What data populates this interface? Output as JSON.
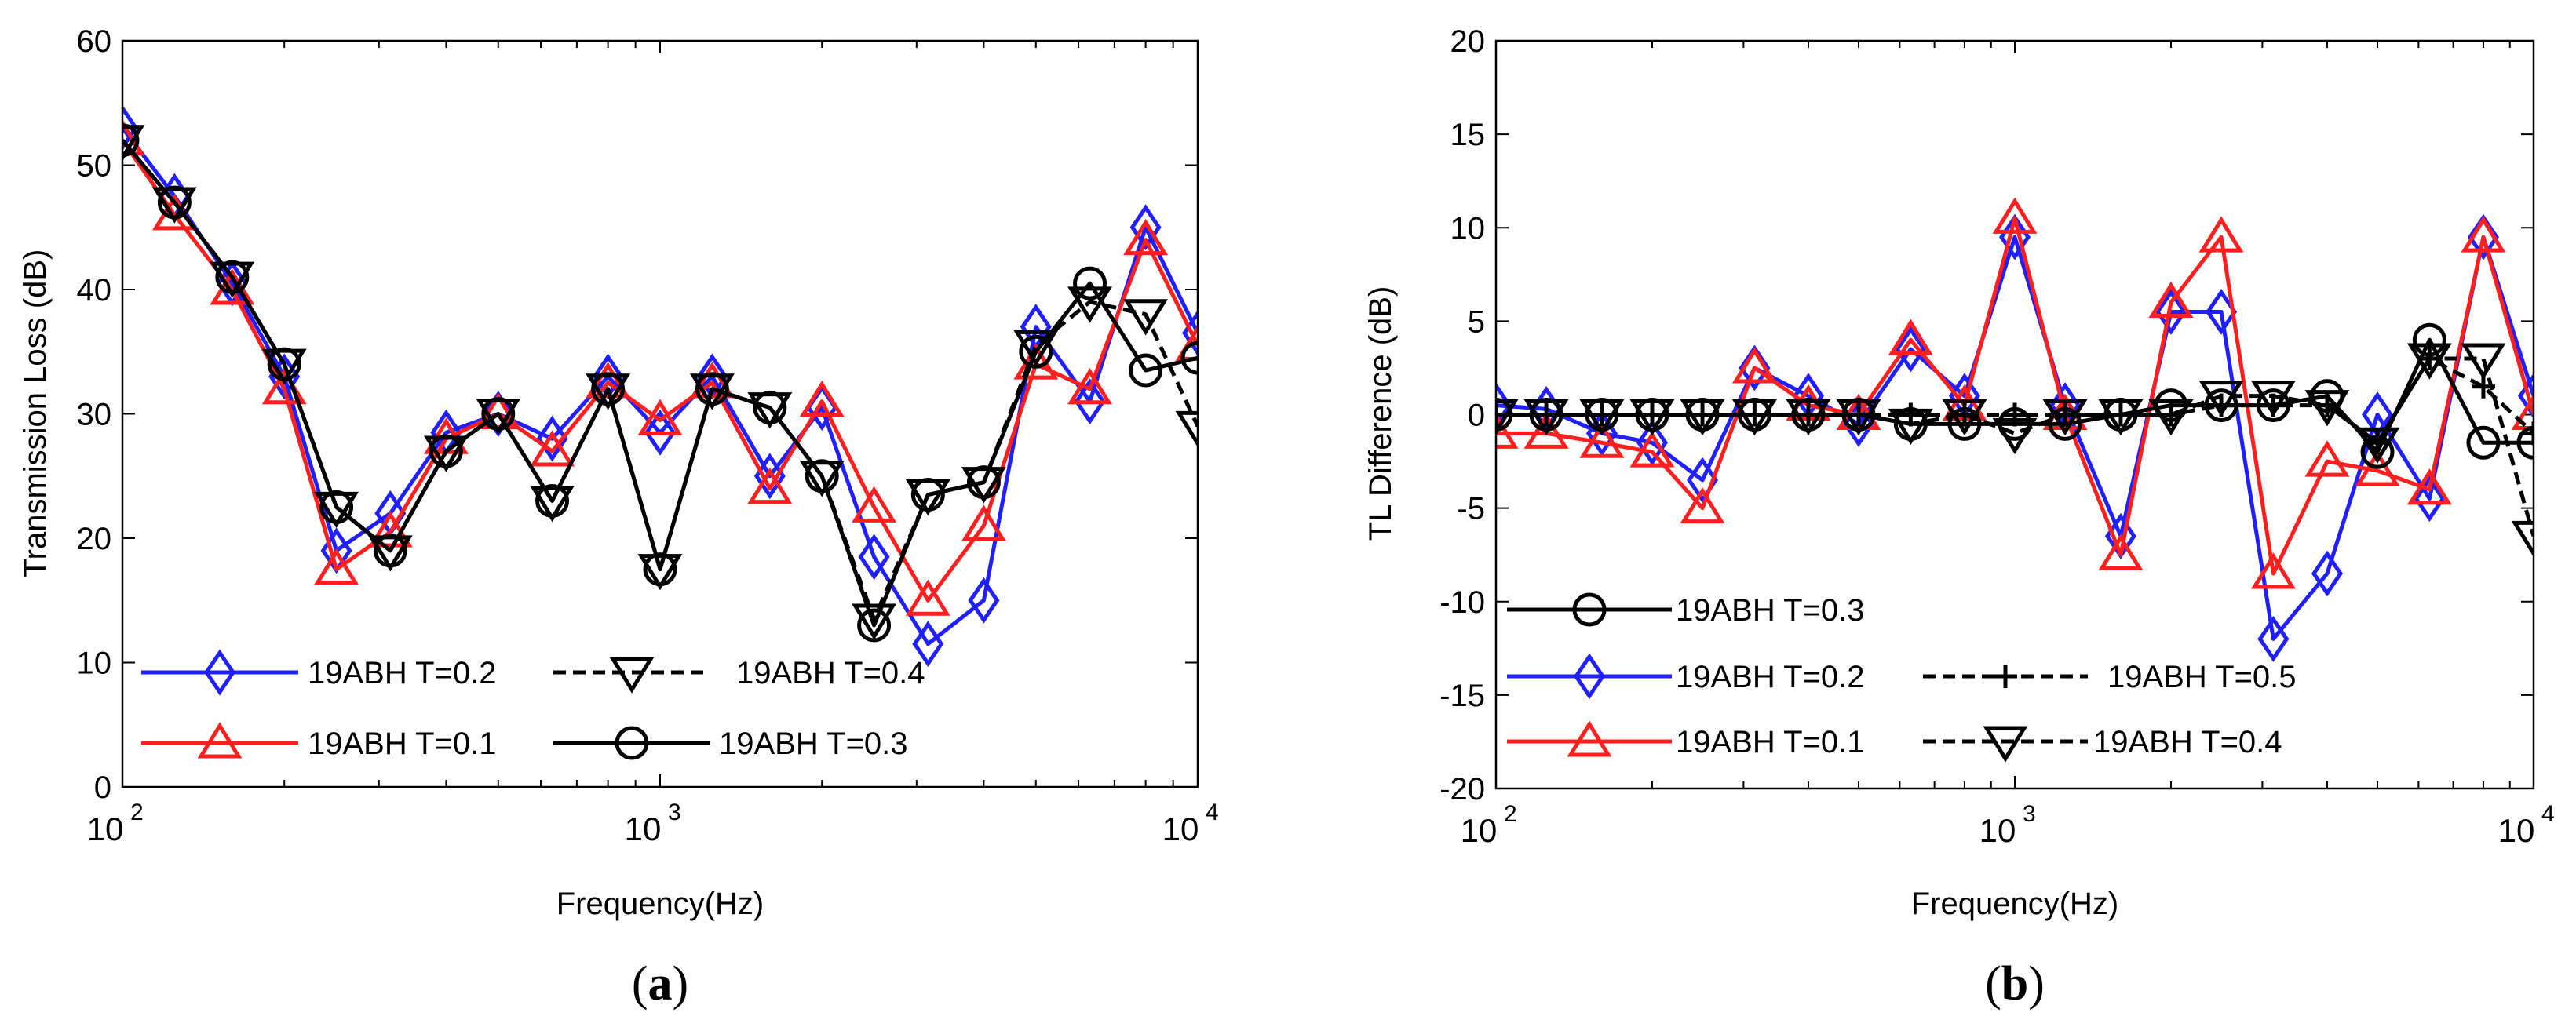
{
  "chart_data": [
    {
      "id": "a",
      "type": "line",
      "panel_label_open": "(",
      "panel_label": "a",
      "panel_label_close": ")",
      "xlabel": "Frequency(Hz)",
      "ylabel": "Transmission Loss (dB)",
      "xscale": "log",
      "xlim": [
        100,
        10000
      ],
      "ylim": [
        0,
        60
      ],
      "yticks": [
        0,
        10,
        20,
        30,
        40,
        50,
        60
      ],
      "xticks": [
        {
          "value": 100,
          "base": "10",
          "exp": "2"
        },
        {
          "value": 1000,
          "base": "10",
          "exp": "3"
        },
        {
          "value": 10000,
          "base": "10",
          "exp": "4"
        }
      ],
      "grid": false,
      "legend_position": "bottom-left",
      "x": [
        100,
        125,
        160,
        200,
        250,
        315,
        400,
        500,
        630,
        800,
        1000,
        1250,
        1600,
        2000,
        2500,
        3150,
        4000,
        5000,
        6300,
        8000,
        10000
      ],
      "series": [
        {
          "name": "19ABH T=0.2",
          "color": "#1f1fff",
          "line": "solid",
          "marker": "diamond",
          "values": [
            53,
            47.5,
            40.5,
            33,
            19,
            22,
            28.5,
            30,
            28,
            33,
            28.5,
            33,
            25,
            30.5,
            18.5,
            11.5,
            15,
            37,
            31,
            45,
            36.5
          ]
        },
        {
          "name": "19ABH T=0.1",
          "color": "#ff1f1f",
          "line": "solid",
          "marker": "triangle-up",
          "values": [
            52,
            46,
            40,
            32,
            17.5,
            20.5,
            28,
            30,
            27,
            32.5,
            29.5,
            32.5,
            24,
            31,
            22.5,
            15,
            21,
            34,
            32,
            44,
            35.5
          ]
        },
        {
          "name": "19ABH T=0.4",
          "color": "#000000",
          "line": "dashed",
          "marker": "triangle-down",
          "values": [
            52,
            47,
            41,
            34,
            22.5,
            19,
            27,
            30,
            23,
            32,
            17.5,
            32,
            30.5,
            25,
            13.5,
            23.5,
            24.5,
            35.5,
            39,
            38,
            29
          ]
        },
        {
          "name": "19ABH T=0.3",
          "color": "#000000",
          "line": "solid",
          "marker": "circle",
          "values": [
            52,
            47,
            41,
            34,
            22.5,
            19,
            27,
            30,
            23,
            32,
            17.5,
            32,
            30.5,
            25,
            13,
            23.5,
            24.5,
            35,
            40.5,
            33.5,
            34.5
          ]
        }
      ],
      "legend": [
        {
          "series": 0,
          "label": "19ABH T=0.2"
        },
        {
          "series": 2,
          "label": "19ABH T=0.4"
        },
        {
          "series": 1,
          "label": "19ABH T=0.1"
        },
        {
          "series": 3,
          "label": "19ABH T=0.3"
        }
      ]
    },
    {
      "id": "b",
      "type": "line",
      "panel_label_open": "(",
      "panel_label": "b",
      "panel_label_close": ")",
      "xlabel": "Frequency(Hz)",
      "ylabel": "TL Difference (dB)",
      "xscale": "log",
      "xlim": [
        100,
        10000
      ],
      "ylim": [
        -20,
        20
      ],
      "yticks": [
        -20,
        -15,
        -10,
        -5,
        0,
        5,
        10,
        15,
        20
      ],
      "xticks": [
        {
          "value": 100,
          "base": "10",
          "exp": "2"
        },
        {
          "value": 1000,
          "base": "10",
          "exp": "3"
        },
        {
          "value": 10000,
          "base": "10",
          "exp": "4"
        }
      ],
      "grid": false,
      "legend_position": "bottom-left",
      "x": [
        100,
        125,
        160,
        200,
        250,
        315,
        400,
        500,
        630,
        800,
        1000,
        1250,
        1600,
        2000,
        2500,
        3150,
        4000,
        5000,
        6300,
        8000,
        10000
      ],
      "series": [
        {
          "name": "19ABH T=0.2",
          "color": "#1f1fff",
          "line": "solid",
          "marker": "diamond",
          "values": [
            0.5,
            0.3,
            -1,
            -1.5,
            -3.5,
            2.5,
            1,
            -0.5,
            3.5,
            1,
            9.5,
            0.5,
            -6.5,
            5.5,
            5.5,
            -12,
            -8.5,
            0,
            -4.5,
            9.5,
            1
          ]
        },
        {
          "name": "19ABH T=0.1",
          "color": "#ff1f1f",
          "line": "solid",
          "marker": "triangle-up",
          "values": [
            -1,
            -1,
            -1.5,
            -2,
            -5,
            2.5,
            0.5,
            0,
            4,
            0.5,
            10.5,
            0,
            -7.5,
            6,
            9.5,
            -8.5,
            -2.5,
            -3,
            -4,
            9.5,
            0
          ]
        },
        {
          "name": "19ABH T=0.5",
          "color": "#000000",
          "line": "dashed",
          "marker": "plus",
          "values": [
            0,
            0,
            0,
            0,
            0,
            0,
            0,
            0,
            0,
            0,
            0,
            0,
            0,
            0,
            0.5,
            0.5,
            0.5,
            -1.5,
            3,
            1.5,
            -1
          ]
        },
        {
          "name": "19ABH T=0.4",
          "color": "#000000",
          "line": "dashed",
          "marker": "triangle-down",
          "values": [
            0,
            0,
            0,
            0,
            0,
            0,
            0,
            0,
            -0.5,
            0,
            -1,
            0,
            0,
            0,
            1,
            1,
            0.5,
            -1.5,
            3,
            3,
            -6.5
          ]
        },
        {
          "name": "19ABH T=0.3",
          "color": "#000000",
          "line": "solid",
          "marker": "circle",
          "values": [
            0,
            0,
            0,
            0,
            0,
            0,
            0,
            0,
            -0.5,
            -0.5,
            -0.5,
            -0.5,
            0,
            0.5,
            0.5,
            0.5,
            1,
            -2,
            4,
            -1.5,
            -1.5
          ]
        }
      ],
      "legend": [
        {
          "series": 4,
          "label": "19ABH T=0.3"
        },
        {
          "series": 0,
          "label": "19ABH T=0.2"
        },
        {
          "series": 2,
          "label": "19ABH T=0.5"
        },
        {
          "series": 1,
          "label": "19ABH T=0.1"
        },
        {
          "series": 3,
          "label": "19ABH T=0.4"
        }
      ]
    }
  ]
}
